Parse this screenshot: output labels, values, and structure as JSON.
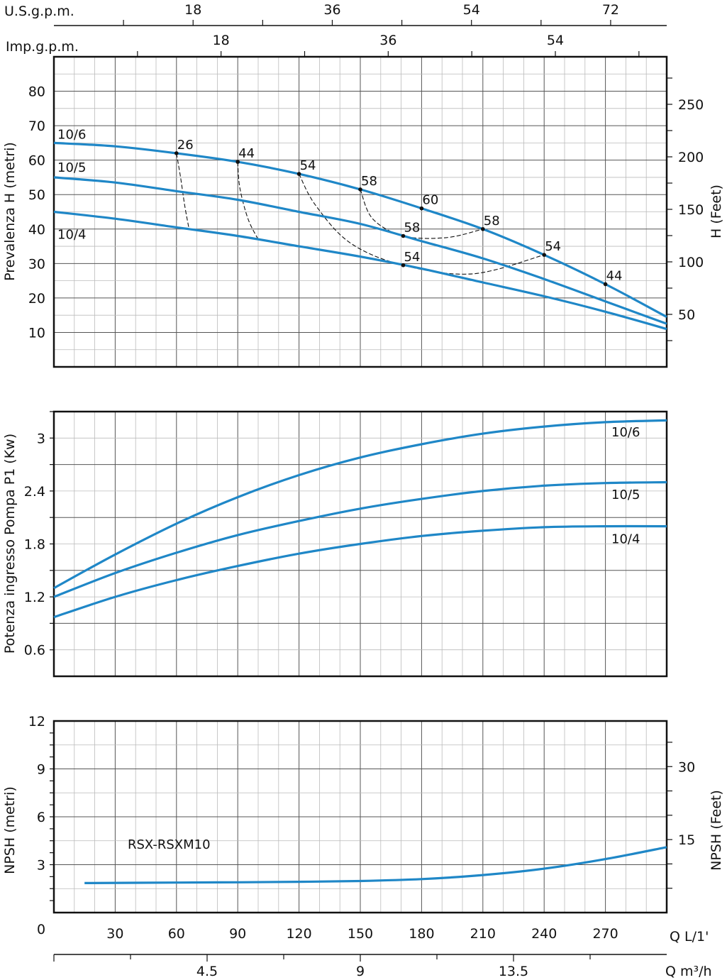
{
  "chart_data": [
    {
      "id": "head",
      "type": "line",
      "title": "",
      "ylabel": "Prevalenza H (metri)",
      "ylabel_right": "H (Feet)",
      "ylim": [
        0,
        90
      ],
      "xlim": [
        0,
        300
      ],
      "yticks": [
        10,
        20,
        30,
        40,
        50,
        60,
        70,
        80
      ],
      "ytick_labels": [
        "10",
        "20",
        "30",
        "40",
        "50",
        "60",
        "70",
        "80"
      ],
      "yticks_right": [
        50,
        100,
        150,
        200,
        250
      ],
      "yticks_right_labels": [
        "50",
        "100",
        "150",
        "200",
        "250"
      ],
      "series": [
        {
          "name": "10/6",
          "x": [
            0,
            30,
            60,
            90,
            120,
            150,
            180,
            210,
            240,
            270,
            300
          ],
          "y": [
            65,
            64,
            62,
            59.5,
            56,
            51.5,
            46,
            40,
            32.5,
            24,
            14.5
          ]
        },
        {
          "name": "10/5",
          "x": [
            0,
            30,
            60,
            90,
            120,
            150,
            180,
            210,
            240,
            270,
            300
          ],
          "y": [
            55,
            53.5,
            51,
            48.5,
            45,
            41.5,
            36.5,
            31.5,
            25.5,
            19,
            12.5
          ]
        },
        {
          "name": "10/4",
          "x": [
            0,
            30,
            60,
            90,
            120,
            150,
            180,
            210,
            240,
            270,
            300
          ],
          "y": [
            45,
            43,
            40.5,
            38,
            35,
            32,
            28.5,
            24.5,
            20.5,
            16,
            11
          ]
        }
      ],
      "efficiency_points": [
        {
          "label": "26",
          "x": 60,
          "y": 62
        },
        {
          "label": "44",
          "x": 90,
          "y": 59.5
        },
        {
          "label": "54",
          "x": 120,
          "y": 56
        },
        {
          "label": "58",
          "x": 150,
          "y": 51.5
        },
        {
          "label": "60",
          "x": 180,
          "y": 46
        },
        {
          "label": "58",
          "x": 210,
          "y": 40
        },
        {
          "label": "54",
          "x": 240,
          "y": 32.5
        },
        {
          "label": "44",
          "x": 270,
          "y": 24
        },
        {
          "label": "58",
          "x": 171,
          "y": 38
        },
        {
          "label": "54",
          "x": 171,
          "y": 29.5
        }
      ],
      "iso_efficiency_lines": [
        {
          "label": "26",
          "x": [
            60,
            62,
            64,
            66
          ],
          "y": [
            62,
            55,
            47,
            40.5
          ]
        },
        {
          "label": "44",
          "x": [
            90,
            91,
            95,
            100
          ],
          "y": [
            59.5,
            52,
            43,
            37
          ]
        },
        {
          "label": "54",
          "x": [
            120,
            128,
            145,
            171,
            205,
            240
          ],
          "y": [
            56,
            47,
            36,
            29.5,
            27,
            32.5
          ]
        },
        {
          "label": "58",
          "x": [
            150,
            156,
            171,
            192,
            210
          ],
          "y": [
            51.5,
            43,
            38,
            37.5,
            40
          ]
        }
      ]
    },
    {
      "id": "power",
      "type": "line",
      "ylabel": "Potenza ingresso Pompa P1 (Kw)",
      "ylim": [
        0.3,
        3.3
      ],
      "xlim": [
        0,
        300
      ],
      "yticks": [
        0.6,
        1.2,
        1.8,
        2.4,
        3
      ],
      "ytick_labels": [
        "0.6",
        "1.2",
        "1.8",
        "2.4",
        "3"
      ],
      "series": [
        {
          "name": "10/6",
          "x": [
            0,
            30,
            60,
            90,
            120,
            150,
            180,
            210,
            240,
            270,
            300
          ],
          "y": [
            1.3,
            1.68,
            2.03,
            2.33,
            2.58,
            2.78,
            2.93,
            3.05,
            3.13,
            3.18,
            3.2
          ]
        },
        {
          "name": "10/5",
          "x": [
            0,
            30,
            60,
            90,
            120,
            150,
            180,
            210,
            240,
            270,
            300
          ],
          "y": [
            1.2,
            1.47,
            1.7,
            1.9,
            2.06,
            2.2,
            2.31,
            2.4,
            2.46,
            2.49,
            2.5
          ]
        },
        {
          "name": "10/4",
          "x": [
            0,
            30,
            60,
            90,
            120,
            150,
            180,
            210,
            240,
            270,
            300
          ],
          "y": [
            0.97,
            1.2,
            1.39,
            1.55,
            1.69,
            1.8,
            1.89,
            1.95,
            1.99,
            2.0,
            2.0
          ]
        }
      ]
    },
    {
      "id": "npsh",
      "type": "line",
      "ylabel": "NPSH (metri)",
      "ylabel_right": "NPSH (Feet)",
      "ylim": [
        0,
        12
      ],
      "xlim": [
        0,
        300
      ],
      "yticks": [
        3,
        6,
        9,
        12
      ],
      "ytick_labels": [
        "3",
        "6",
        "9",
        "12"
      ],
      "yticks_right": [
        15,
        30
      ],
      "yticks_right_labels": [
        "15",
        "30"
      ],
      "annotation": "RSX-RSXM10",
      "series": [
        {
          "name": "RSX-RSXM10",
          "x": [
            15,
            60,
            90,
            120,
            150,
            180,
            210,
            240,
            270,
            300
          ],
          "y": [
            1.85,
            1.88,
            1.9,
            1.93,
            1.98,
            2.1,
            2.35,
            2.75,
            3.35,
            4.1
          ]
        }
      ]
    }
  ],
  "axes": {
    "x_main": {
      "label": "Q L/1'",
      "zero_label": "0",
      "ticks": [
        30,
        60,
        90,
        120,
        150,
        180,
        210,
        240,
        270
      ],
      "tick_labels": [
        "30",
        "60",
        "90",
        "120",
        "150",
        "180",
        "210",
        "240",
        "270"
      ]
    },
    "x_m3h": {
      "label": "Q m³/h",
      "ticks": [
        4.5,
        9,
        13.5
      ],
      "tick_labels": [
        "4.5",
        "9",
        "13.5"
      ]
    },
    "x_usgpm": {
      "label": "U.S.g.p.m.",
      "ticks": [
        18,
        36,
        54,
        72
      ],
      "tick_labels": [
        "18",
        "36",
        "54",
        "72"
      ]
    },
    "x_impgpm": {
      "label": "Imp.g.p.m.",
      "ticks": [
        18,
        36,
        54
      ],
      "tick_labels": [
        "18",
        "36",
        "54"
      ]
    }
  },
  "colors": {
    "curve": "#1f87c7",
    "frame": "#111111",
    "grid_major": "#555555",
    "grid_minor": "#bbbbbb"
  }
}
